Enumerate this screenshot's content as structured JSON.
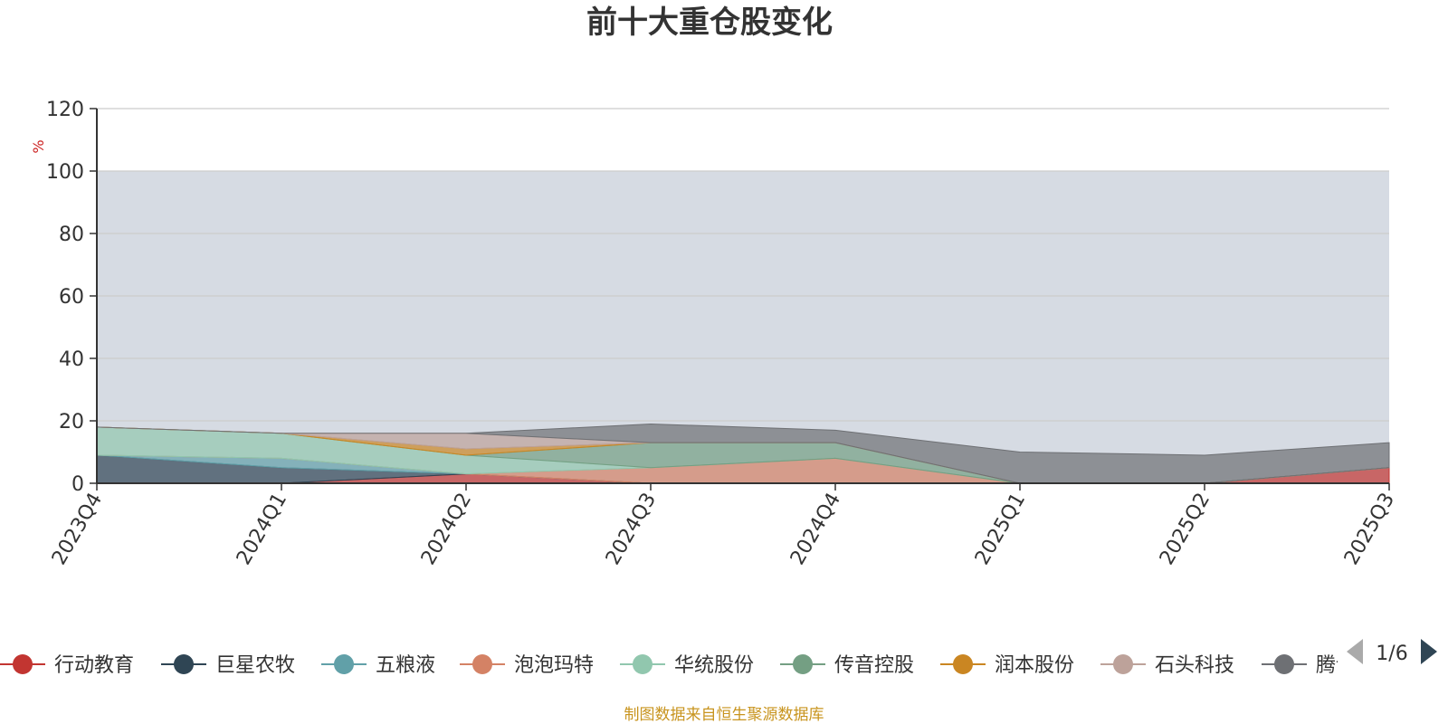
{
  "title": "前十大重仓股变化",
  "source": "制图数据来自恒生聚源数据库",
  "legend_page": "1/6",
  "colors": {
    "plot_band": "#d6dbe3",
    "axis": "#333333",
    "grid": "#cccccc"
  },
  "chart_data": {
    "type": "area",
    "stacked": true,
    "categories": [
      "2023Q4",
      "2024Q1",
      "2024Q2",
      "2024Q3",
      "2024Q4",
      "2025Q1",
      "2025Q2",
      "2025Q3"
    ],
    "ylabel": "%",
    "ylim": [
      0,
      120
    ],
    "yticks": [
      0,
      20,
      40,
      60,
      80,
      100,
      120
    ],
    "plot_band": [
      0,
      100
    ],
    "series": [
      {
        "name": "行动教育",
        "color": "#c23531",
        "values": [
          0,
          0,
          3,
          0,
          0,
          0,
          0,
          5
        ]
      },
      {
        "name": "巨星农牧",
        "color": "#2f4554",
        "values": [
          9,
          5,
          0,
          0,
          0,
          0,
          0,
          0
        ]
      },
      {
        "name": "五粮液",
        "color": "#61a0a8",
        "values": [
          0,
          3,
          0,
          0,
          0,
          0,
          0,
          0
        ]
      },
      {
        "name": "泡泡玛特",
        "color": "#d48265",
        "values": [
          0,
          0,
          0,
          5,
          8,
          0,
          0,
          0
        ]
      },
      {
        "name": "华统股份",
        "color": "#91c7ae",
        "values": [
          9,
          8,
          6,
          0,
          0,
          0,
          0,
          0
        ]
      },
      {
        "name": "传音控股",
        "color": "#749f83",
        "values": [
          0,
          0,
          0,
          8,
          5,
          0,
          0,
          0
        ]
      },
      {
        "name": "润本股份",
        "color": "#ca8622",
        "values": [
          0,
          0,
          2,
          0,
          0,
          0,
          0,
          0
        ]
      },
      {
        "name": "石头科技",
        "color": "#bda29a",
        "values": [
          0,
          0,
          5,
          0,
          0,
          0,
          0,
          0
        ]
      },
      {
        "name": "腾讯控股",
        "color": "#6e7074",
        "values": [
          0,
          0,
          0,
          6,
          4,
          10,
          9,
          8
        ]
      }
    ]
  }
}
